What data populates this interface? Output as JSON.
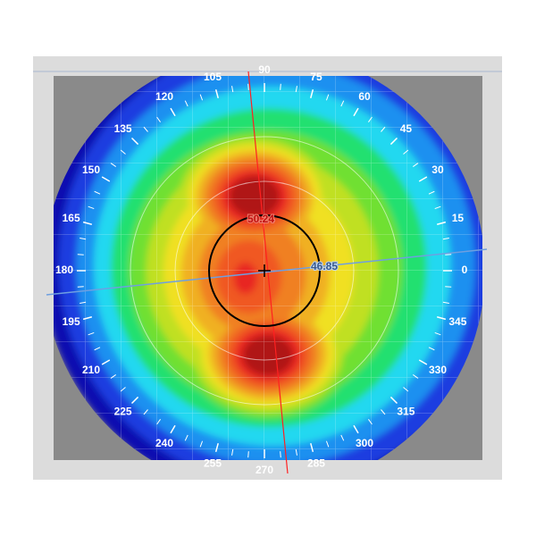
{
  "map": {
    "angle_labels": [
      "0",
      "15",
      "30",
      "45",
      "60",
      "75",
      "90",
      "105",
      "120",
      "135",
      "150",
      "165",
      "180",
      "195",
      "210",
      "225",
      "240",
      "255",
      "270",
      "285",
      "300",
      "315",
      "330",
      "345"
    ],
    "steep_k": "50.24",
    "flat_k": "46.85",
    "colors": {
      "steep_axis": "#ff2020",
      "flat_axis": "#6f9fe0",
      "layers": [
        "#1010b0",
        "#1a3ee0",
        "#1e90f0",
        "#20d8f0",
        "#20e070",
        "#70e030",
        "#c0e020",
        "#f0e020",
        "#f0b020",
        "#f08020",
        "#f05820",
        "#e82820",
        "#b01818"
      ]
    }
  }
}
